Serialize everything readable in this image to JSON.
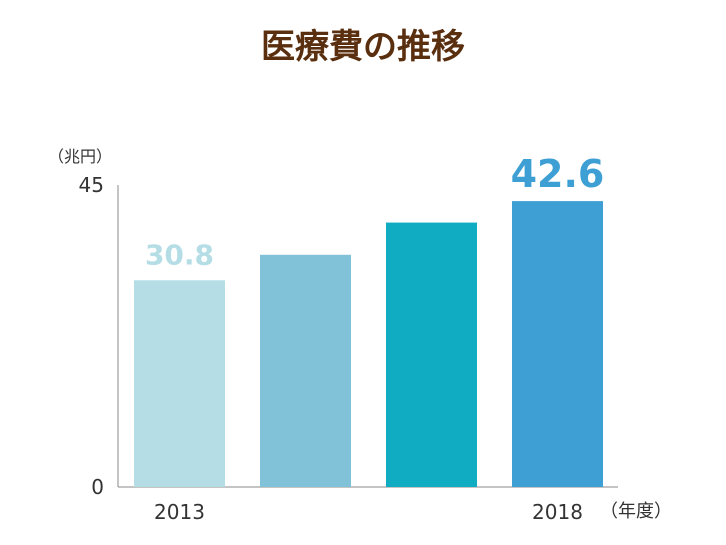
{
  "chart_data": {
    "type": "bar",
    "title": "医療費の推移",
    "ylabel": "（兆円）",
    "xlabel": "（年度）",
    "categories": [
      "2013",
      "",
      "",
      "2018"
    ],
    "values": [
      30.8,
      34.6,
      39.4,
      42.6
    ],
    "bar_colors": [
      "#b5dde6",
      "#82c2d8",
      "#10adc2",
      "#3d9fd3"
    ],
    "data_labels": [
      {
        "index": 0,
        "text": "30.8",
        "color": "#b5dde6"
      },
      {
        "index": 3,
        "text": "42.6",
        "color": "#3d9fd3"
      }
    ],
    "ylim": [
      0,
      45
    ],
    "yticks": [
      "0",
      "45"
    ],
    "grid": false,
    "title_color": "#5a2f0f"
  }
}
